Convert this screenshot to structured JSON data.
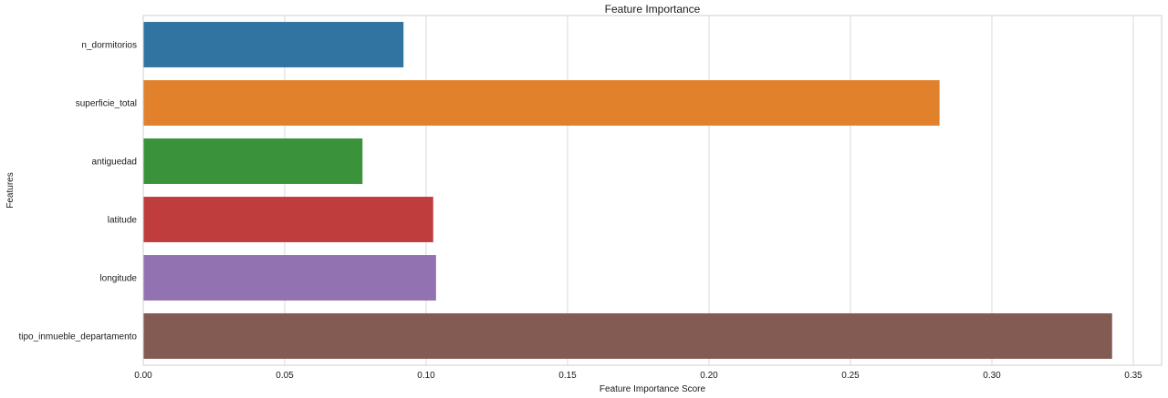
{
  "chart_data": {
    "type": "bar",
    "orientation": "horizontal",
    "title": "Feature Importance",
    "xlabel": "Feature Importance Score",
    "ylabel": "Features",
    "categories": [
      "n_dormitorios",
      "superficie_total",
      "antiguedad",
      "latitude",
      "longitude",
      "tipo_inmueble_departamento"
    ],
    "values": [
      0.092,
      0.2815,
      0.0775,
      0.1025,
      0.1035,
      0.3425
    ],
    "colors": [
      "#3274a1",
      "#e1812c",
      "#3a923a",
      "#c03d3e",
      "#9372b2",
      "#845b53"
    ],
    "xlim": [
      0,
      0.36
    ],
    "xticks": [
      0,
      0.05,
      0.1,
      0.15,
      0.2,
      0.25,
      0.3,
      0.35
    ],
    "xtick_labels": [
      "0.00",
      "0.05",
      "0.10",
      "0.15",
      "0.20",
      "0.25",
      "0.30",
      "0.35"
    ],
    "grid": "vertical",
    "grid_color": "#d9d9d9",
    "legend": "none"
  }
}
